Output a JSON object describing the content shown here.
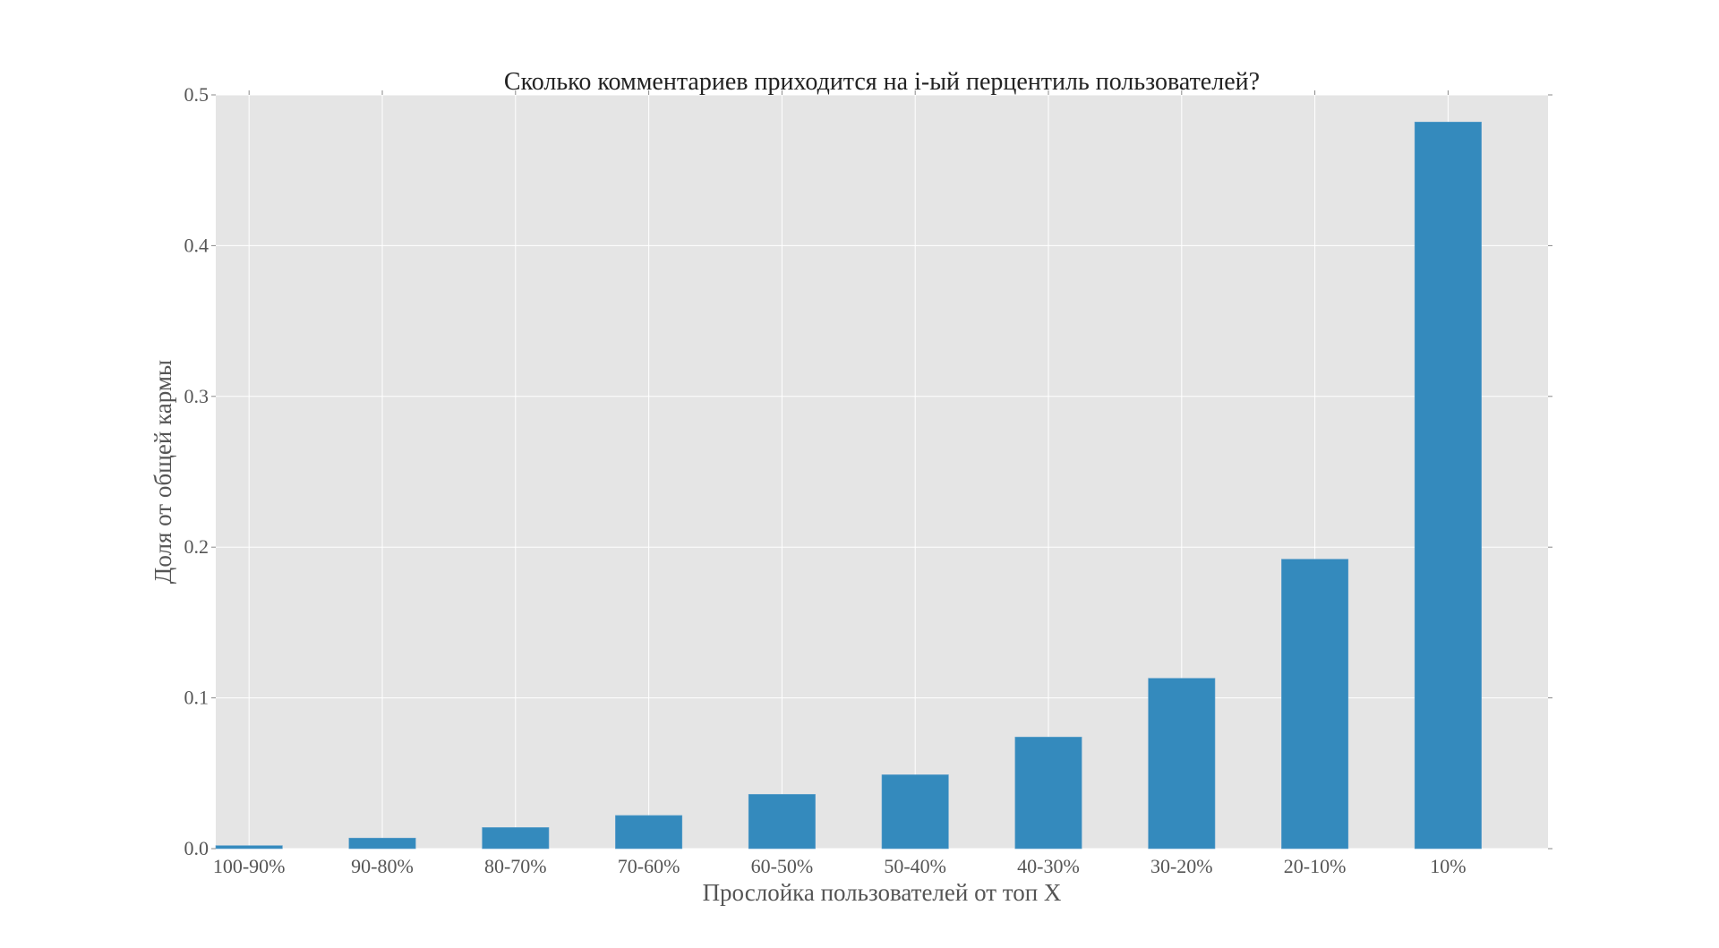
{
  "chart_data": {
    "type": "bar",
    "title": "Сколько комментариев приходится на i-ый перцентиль пользователей?",
    "xlabel": "Прослойка пользователей от топ X",
    "ylabel": "Доля от общей кармы",
    "categories": [
      "100-90%",
      "90-80%",
      "80-70%",
      "70-60%",
      "60-50%",
      "50-40%",
      "40-30%",
      "30-20%",
      "20-10%",
      "10%"
    ],
    "values": [
      0.002,
      0.007,
      0.014,
      0.022,
      0.036,
      0.049,
      0.074,
      0.113,
      0.192,
      0.482
    ],
    "ylim": [
      0,
      0.5
    ],
    "xlim": [
      -0.25,
      9.75
    ],
    "bar_width": 0.5,
    "yticks": [
      0.0,
      0.1,
      0.2,
      0.3,
      0.4,
      0.5
    ],
    "ytick_labels": [
      "0.0",
      "0.1",
      "0.2",
      "0.3",
      "0.4",
      "0.5"
    ],
    "grid": true,
    "colors": {
      "bar": "#348abd",
      "background": "#e5e5e5",
      "grid": "#ffffff"
    }
  }
}
